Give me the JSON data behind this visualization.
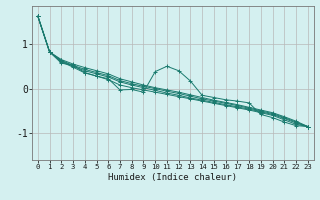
{
  "xlabel": "Humidex (Indice chaleur)",
  "bg_color": "#d4f0f0",
  "grid_color": "#b8b8b8",
  "line_color": "#1a7a6e",
  "xlim": [
    -0.5,
    23.5
  ],
  "ylim": [
    -1.6,
    1.85
  ],
  "yticks": [
    -1,
    0,
    1
  ],
  "xticks": [
    0,
    1,
    2,
    3,
    4,
    5,
    6,
    7,
    8,
    9,
    10,
    11,
    12,
    13,
    14,
    15,
    16,
    17,
    18,
    19,
    20,
    21,
    22,
    23
  ],
  "series": [
    [
      0,
      1.62
    ],
    [
      1,
      0.82
    ],
    [
      2,
      0.57
    ],
    [
      3,
      0.52
    ],
    [
      4,
      0.36
    ],
    [
      5,
      0.28
    ],
    [
      6,
      0.22
    ],
    [
      7,
      -0.03
    ],
    [
      8,
      -0.02
    ],
    [
      9,
      -0.08
    ],
    [
      10,
      0.38
    ],
    [
      11,
      0.5
    ],
    [
      12,
      0.4
    ],
    [
      13,
      0.17
    ],
    [
      14,
      -0.15
    ],
    [
      15,
      -0.2
    ],
    [
      16,
      -0.25
    ],
    [
      17,
      -0.28
    ],
    [
      18,
      -0.32
    ],
    [
      19,
      -0.58
    ],
    [
      20,
      -0.65
    ],
    [
      21,
      -0.75
    ],
    [
      22,
      -0.83
    ],
    [
      23,
      -0.85
    ]
  ],
  "series2": [
    [
      0,
      1.62
    ],
    [
      1,
      0.82
    ],
    [
      2,
      0.6
    ],
    [
      3,
      0.48
    ],
    [
      4,
      0.35
    ],
    [
      5,
      0.28
    ],
    [
      6,
      0.2
    ],
    [
      7,
      0.08
    ],
    [
      8,
      0.02
    ],
    [
      9,
      -0.03
    ],
    [
      10,
      -0.08
    ],
    [
      11,
      -0.13
    ],
    [
      12,
      -0.18
    ],
    [
      13,
      -0.23
    ],
    [
      14,
      -0.28
    ],
    [
      15,
      -0.33
    ],
    [
      16,
      -0.38
    ],
    [
      17,
      -0.43
    ],
    [
      18,
      -0.48
    ],
    [
      19,
      -0.54
    ],
    [
      20,
      -0.6
    ],
    [
      21,
      -0.7
    ],
    [
      22,
      -0.8
    ],
    [
      23,
      -0.85
    ]
  ],
  "series3": [
    [
      0,
      1.62
    ],
    [
      1,
      0.82
    ],
    [
      2,
      0.62
    ],
    [
      3,
      0.5
    ],
    [
      4,
      0.4
    ],
    [
      5,
      0.33
    ],
    [
      6,
      0.26
    ],
    [
      7,
      0.15
    ],
    [
      8,
      0.08
    ],
    [
      9,
      0.02
    ],
    [
      10,
      -0.04
    ],
    [
      11,
      -0.1
    ],
    [
      12,
      -0.15
    ],
    [
      13,
      -0.21
    ],
    [
      14,
      -0.26
    ],
    [
      15,
      -0.31
    ],
    [
      16,
      -0.36
    ],
    [
      17,
      -0.41
    ],
    [
      18,
      -0.46
    ],
    [
      19,
      -0.52
    ],
    [
      20,
      -0.58
    ],
    [
      21,
      -0.67
    ],
    [
      22,
      -0.77
    ],
    [
      23,
      -0.85
    ]
  ],
  "series4": [
    [
      0,
      1.62
    ],
    [
      1,
      0.82
    ],
    [
      2,
      0.63
    ],
    [
      3,
      0.52
    ],
    [
      4,
      0.43
    ],
    [
      5,
      0.36
    ],
    [
      6,
      0.29
    ],
    [
      7,
      0.18
    ],
    [
      8,
      0.11
    ],
    [
      9,
      0.05
    ],
    [
      10,
      0.0
    ],
    [
      11,
      -0.06
    ],
    [
      12,
      -0.11
    ],
    [
      13,
      -0.17
    ],
    [
      14,
      -0.23
    ],
    [
      15,
      -0.28
    ],
    [
      16,
      -0.33
    ],
    [
      17,
      -0.38
    ],
    [
      18,
      -0.44
    ],
    [
      19,
      -0.5
    ],
    [
      20,
      -0.56
    ],
    [
      21,
      -0.65
    ],
    [
      22,
      -0.75
    ],
    [
      23,
      -0.85
    ]
  ],
  "series5": [
    [
      0,
      1.62
    ],
    [
      1,
      0.82
    ],
    [
      2,
      0.65
    ],
    [
      3,
      0.55
    ],
    [
      4,
      0.47
    ],
    [
      5,
      0.4
    ],
    [
      6,
      0.33
    ],
    [
      7,
      0.22
    ],
    [
      8,
      0.15
    ],
    [
      9,
      0.08
    ],
    [
      10,
      0.02
    ],
    [
      11,
      -0.03
    ],
    [
      12,
      -0.08
    ],
    [
      13,
      -0.14
    ],
    [
      14,
      -0.2
    ],
    [
      15,
      -0.26
    ],
    [
      16,
      -0.31
    ],
    [
      17,
      -0.36
    ],
    [
      18,
      -0.42
    ],
    [
      19,
      -0.48
    ],
    [
      20,
      -0.54
    ],
    [
      21,
      -0.63
    ],
    [
      22,
      -0.73
    ],
    [
      23,
      -0.85
    ]
  ]
}
